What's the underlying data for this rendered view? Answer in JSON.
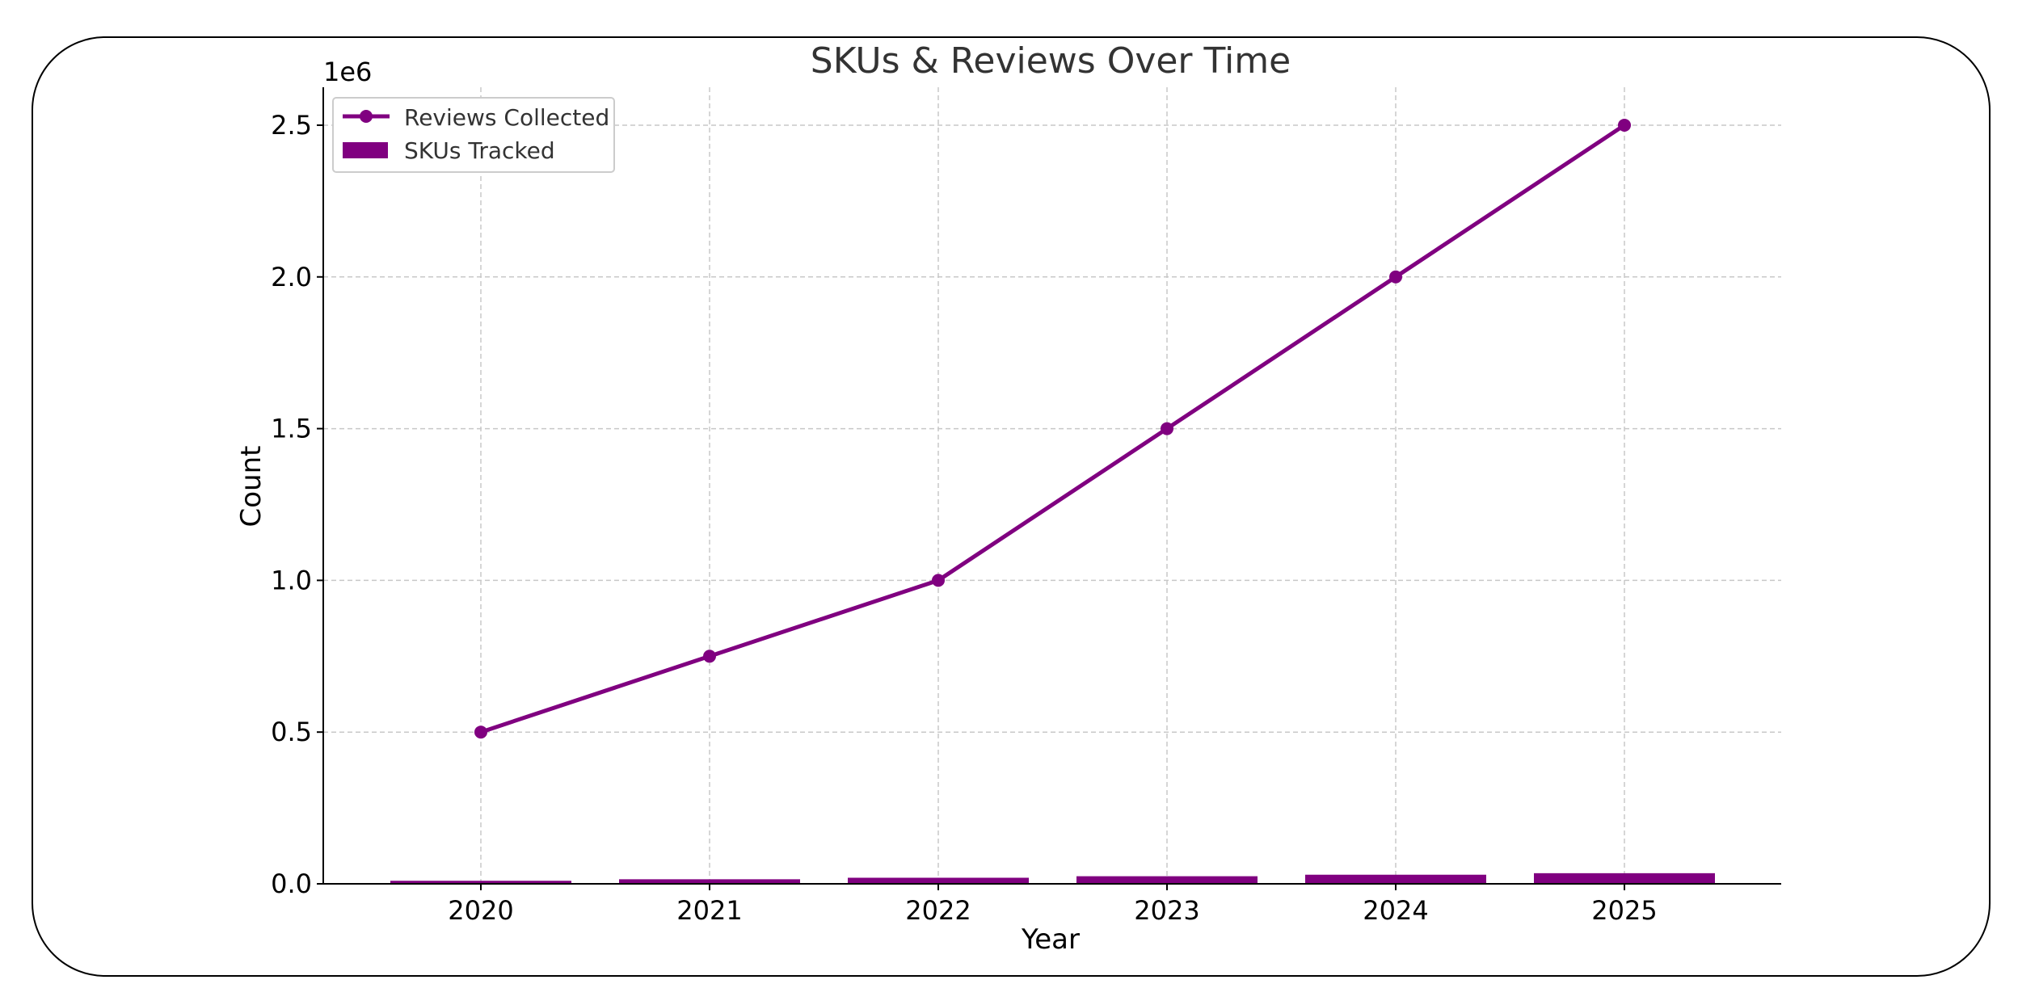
{
  "chart_data": {
    "type": "bar",
    "title": "SKUs & Reviews Over Time",
    "xlabel": "Year",
    "ylabel": "Count",
    "y_offset_label": "1e6",
    "categories": [
      "2020",
      "2021",
      "2022",
      "2023",
      "2024",
      "2025"
    ],
    "series": [
      {
        "name": "SKUs Tracked",
        "type": "bar",
        "values": [
          10000,
          15000,
          20000,
          25000,
          30000,
          35000
        ],
        "color": "#800080"
      },
      {
        "name": "Reviews Collected",
        "type": "line",
        "marker": "circle",
        "values": [
          500000,
          750000,
          1000000,
          1500000,
          2000000,
          2500000
        ],
        "color": "#800080"
      }
    ],
    "y_ticks": [
      0,
      500000,
      1000000,
      1500000,
      2000000,
      2500000
    ],
    "y_tick_labels": [
      "0.0",
      "0.5",
      "1.0",
      "1.5",
      "2.0",
      "2.5"
    ],
    "ylim": [
      0,
      2625000
    ],
    "grid": true,
    "grid_style": "dashed",
    "legend_position": "top-left",
    "legend": [
      {
        "label": "Reviews Collected",
        "kind": "line-marker"
      },
      {
        "label": "SKUs Tracked",
        "kind": "bar"
      }
    ],
    "colors": {
      "accent": "#800080",
      "grid": "#c8c8c8",
      "frame": "#000000",
      "text": "#333333"
    }
  }
}
